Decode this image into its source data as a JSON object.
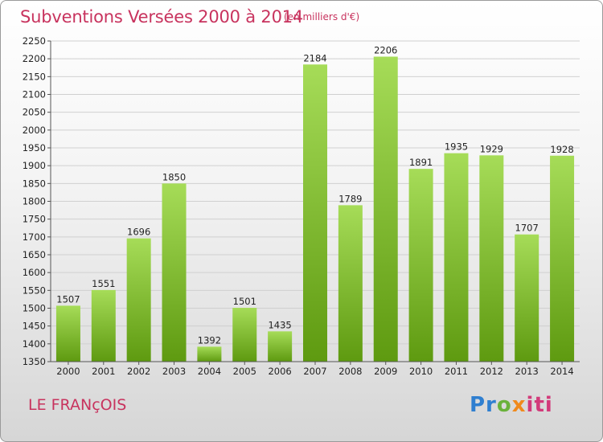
{
  "title": "Subventions Versées 2000 à 2014",
  "subtitle": "(en milliers d'€)",
  "commune": "LE FRANçOIS",
  "logo": {
    "p1": "Pr",
    "p2": "o",
    "p3": "x",
    "p4": "iti"
  },
  "colors": {
    "title": "#c8335e",
    "bar_top": "#a6dc58",
    "bar_bottom": "#5e9a10",
    "grid": "#d0d0d0"
  },
  "chart_data": {
    "type": "bar",
    "categories": [
      "2000",
      "2001",
      "2002",
      "2003",
      "2004",
      "2005",
      "2006",
      "2007",
      "2008",
      "2009",
      "2010",
      "2011",
      "2012",
      "2013",
      "2014"
    ],
    "values": [
      1507,
      1551,
      1696,
      1850,
      1392,
      1501,
      1435,
      2184,
      1789,
      2206,
      1891,
      1935,
      1929,
      1707,
      1928
    ],
    "ylim": [
      1350,
      2250
    ],
    "ytick_step": 50,
    "grid": true,
    "data_labels": true
  }
}
